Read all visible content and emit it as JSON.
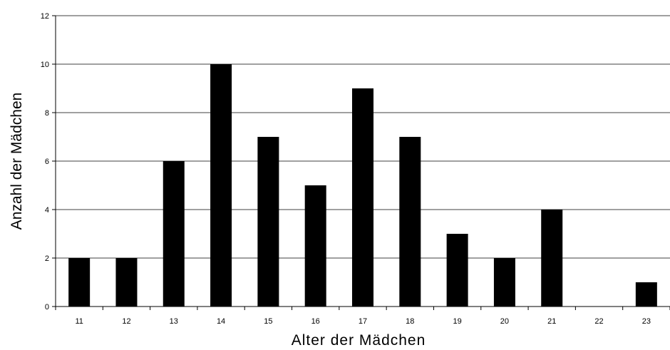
{
  "chart_data": {
    "type": "bar",
    "categories": [
      "11",
      "12",
      "13",
      "14",
      "15",
      "16",
      "17",
      "18",
      "19",
      "20",
      "21",
      "22",
      "23"
    ],
    "values": [
      2,
      2,
      6,
      10,
      7,
      5,
      9,
      7,
      3,
      2,
      4,
      0,
      1
    ],
    "xlabel": "Alter der Mädchen",
    "ylabel": "Anzahl der Mädchen",
    "ylim": [
      0,
      12
    ],
    "yticks": [
      "0",
      "2",
      "4",
      "6",
      "8",
      "10",
      "12"
    ],
    "grid": true,
    "legend": "none",
    "colors": {
      "bar": "#000000",
      "grid": "#000000",
      "background": "#ffffff"
    }
  }
}
